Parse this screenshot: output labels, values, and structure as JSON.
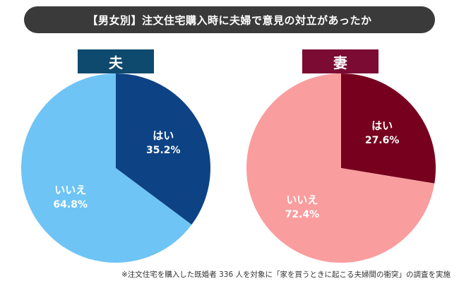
{
  "title": "【男女別】注文住宅購入時に夫婦で意見の対立があったか",
  "footnote": "※注文住宅を購入した既婚者 336 人を対象に「家を買うときに起こる夫婦間の衝突」の調査を実施",
  "chart_data": [
    {
      "type": "pie",
      "title": "夫",
      "title_color": "#0e4a6e",
      "slices": [
        {
          "label": "はい",
          "value": 35.2,
          "display": "35.2%",
          "color": "#0d4384"
        },
        {
          "label": "いいえ",
          "value": 64.8,
          "display": "64.8%",
          "color": "#6ec4f5"
        }
      ]
    },
    {
      "type": "pie",
      "title": "妻",
      "title_color": "#7b0b33",
      "slices": [
        {
          "label": "はい",
          "value": 27.6,
          "display": "27.6%",
          "color": "#76001e"
        },
        {
          "label": "いいえ",
          "value": 72.4,
          "display": "72.4%",
          "color": "#f99d9e"
        }
      ]
    }
  ]
}
